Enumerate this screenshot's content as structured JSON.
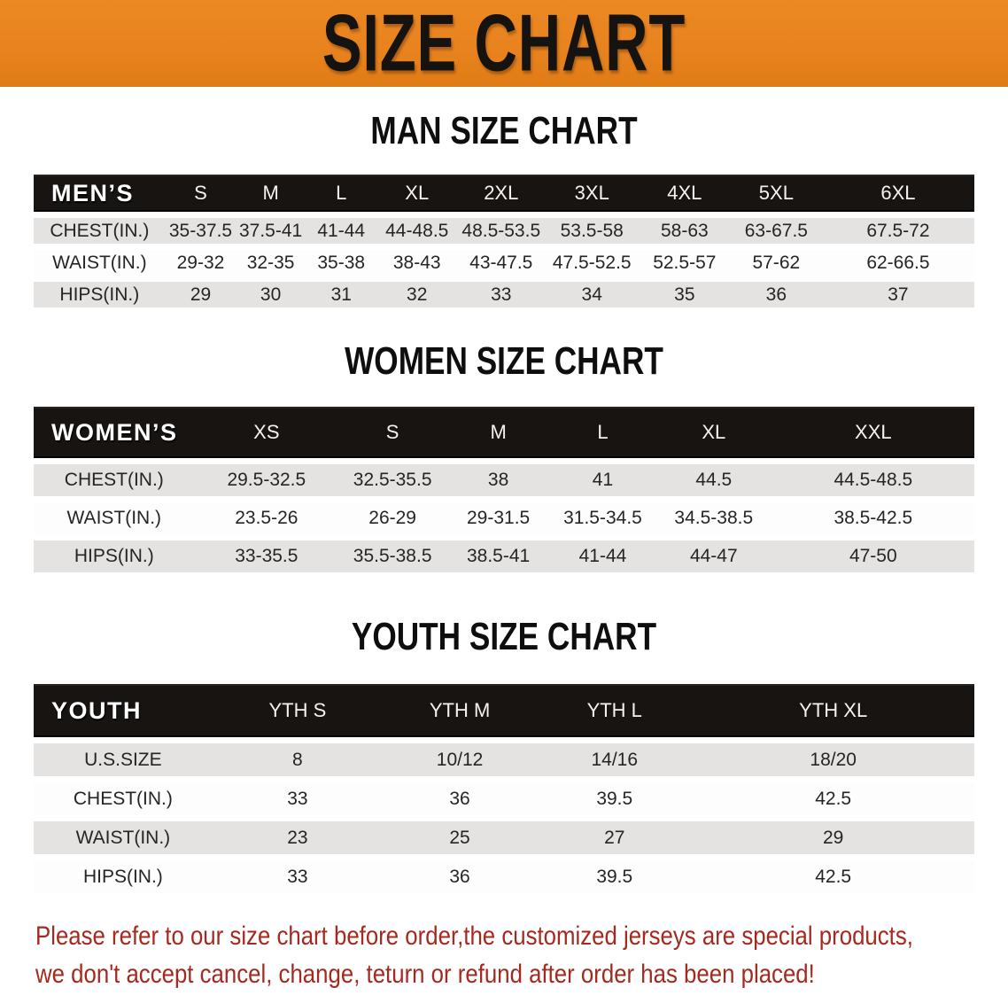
{
  "banner": {
    "title": "SIZE CHART",
    "bg_color": "#E8831F",
    "text_color": "#151310"
  },
  "sections": [
    {
      "heading": "MAN SIZE CHART",
      "table": {
        "header_label": "MEN’S",
        "columns": [
          "S",
          "M",
          "L",
          "XL",
          "2XL",
          "3XL",
          "4XL",
          "5XL",
          "6XL"
        ],
        "rows": [
          {
            "label": "CHEST(IN.)",
            "values": [
              "35-37.5",
              "37.5-41",
              "41-44",
              "44-48.5",
              "48.5-53.5",
              "53.5-58",
              "58-63",
              "63-67.5",
              "67.5-72"
            ]
          },
          {
            "label": "WAIST(IN.)",
            "values": [
              "29-32",
              "32-35",
              "35-38",
              "38-43",
              "43-47.5",
              "47.5-52.5",
              "52.5-57",
              "57-62",
              "62-66.5"
            ]
          },
          {
            "label": "HIPS(IN.)",
            "values": [
              "29",
              "30",
              "31",
              "32",
              "33",
              "34",
              "35",
              "36",
              "37"
            ]
          }
        ]
      }
    },
    {
      "heading": "WOMEN SIZE CHART",
      "table": {
        "header_label": "WOMEN’S",
        "columns": [
          "XS",
          "S",
          "M",
          "L",
          "XL",
          "XXL"
        ],
        "rows": [
          {
            "label": "CHEST(IN.)",
            "values": [
              "29.5-32.5",
              "32.5-35.5",
              "38",
              "41",
              "44.5",
              "44.5-48.5"
            ]
          },
          {
            "label": "WAIST(IN.)",
            "values": [
              "23.5-26",
              "26-29",
              "29-31.5",
              "31.5-34.5",
              "34.5-38.5",
              "38.5-42.5"
            ]
          },
          {
            "label": "HIPS(IN.)",
            "values": [
              "33-35.5",
              "35.5-38.5",
              "38.5-41",
              "41-44",
              "44-47",
              "47-50"
            ]
          }
        ]
      }
    },
    {
      "heading": "YOUTH SIZE CHART",
      "table": {
        "header_label": "YOUTH",
        "columns": [
          "YTH S",
          "YTH M",
          "YTH L",
          "YTH XL"
        ],
        "rows": [
          {
            "label": "U.S.SIZE",
            "values": [
              "8",
              "10/12",
              "14/16",
              "18/20"
            ]
          },
          {
            "label": "CHEST(IN.)",
            "values": [
              "33",
              "36",
              "39.5",
              "42.5"
            ]
          },
          {
            "label": "WAIST(IN.)",
            "values": [
              "23",
              "25",
              "27",
              "29"
            ]
          },
          {
            "label": "HIPS(IN.)",
            "values": [
              "33",
              "36",
              "39.5",
              "42.5"
            ]
          }
        ]
      }
    }
  ],
  "footer": {
    "line1": "Please refer to our size chart before order,the customized jerseys are special products,",
    "line2": "we don't accept cancel, change, teturn or refund after order has been placed!",
    "text_color": "#A5291F"
  },
  "colors": {
    "banner_orange": "#E8831F",
    "table_header_bg": "#181412",
    "shaded_row_bg": "#E4E3E1",
    "plain_row_bg": "#FDFDFD",
    "body_text": "#262524"
  }
}
